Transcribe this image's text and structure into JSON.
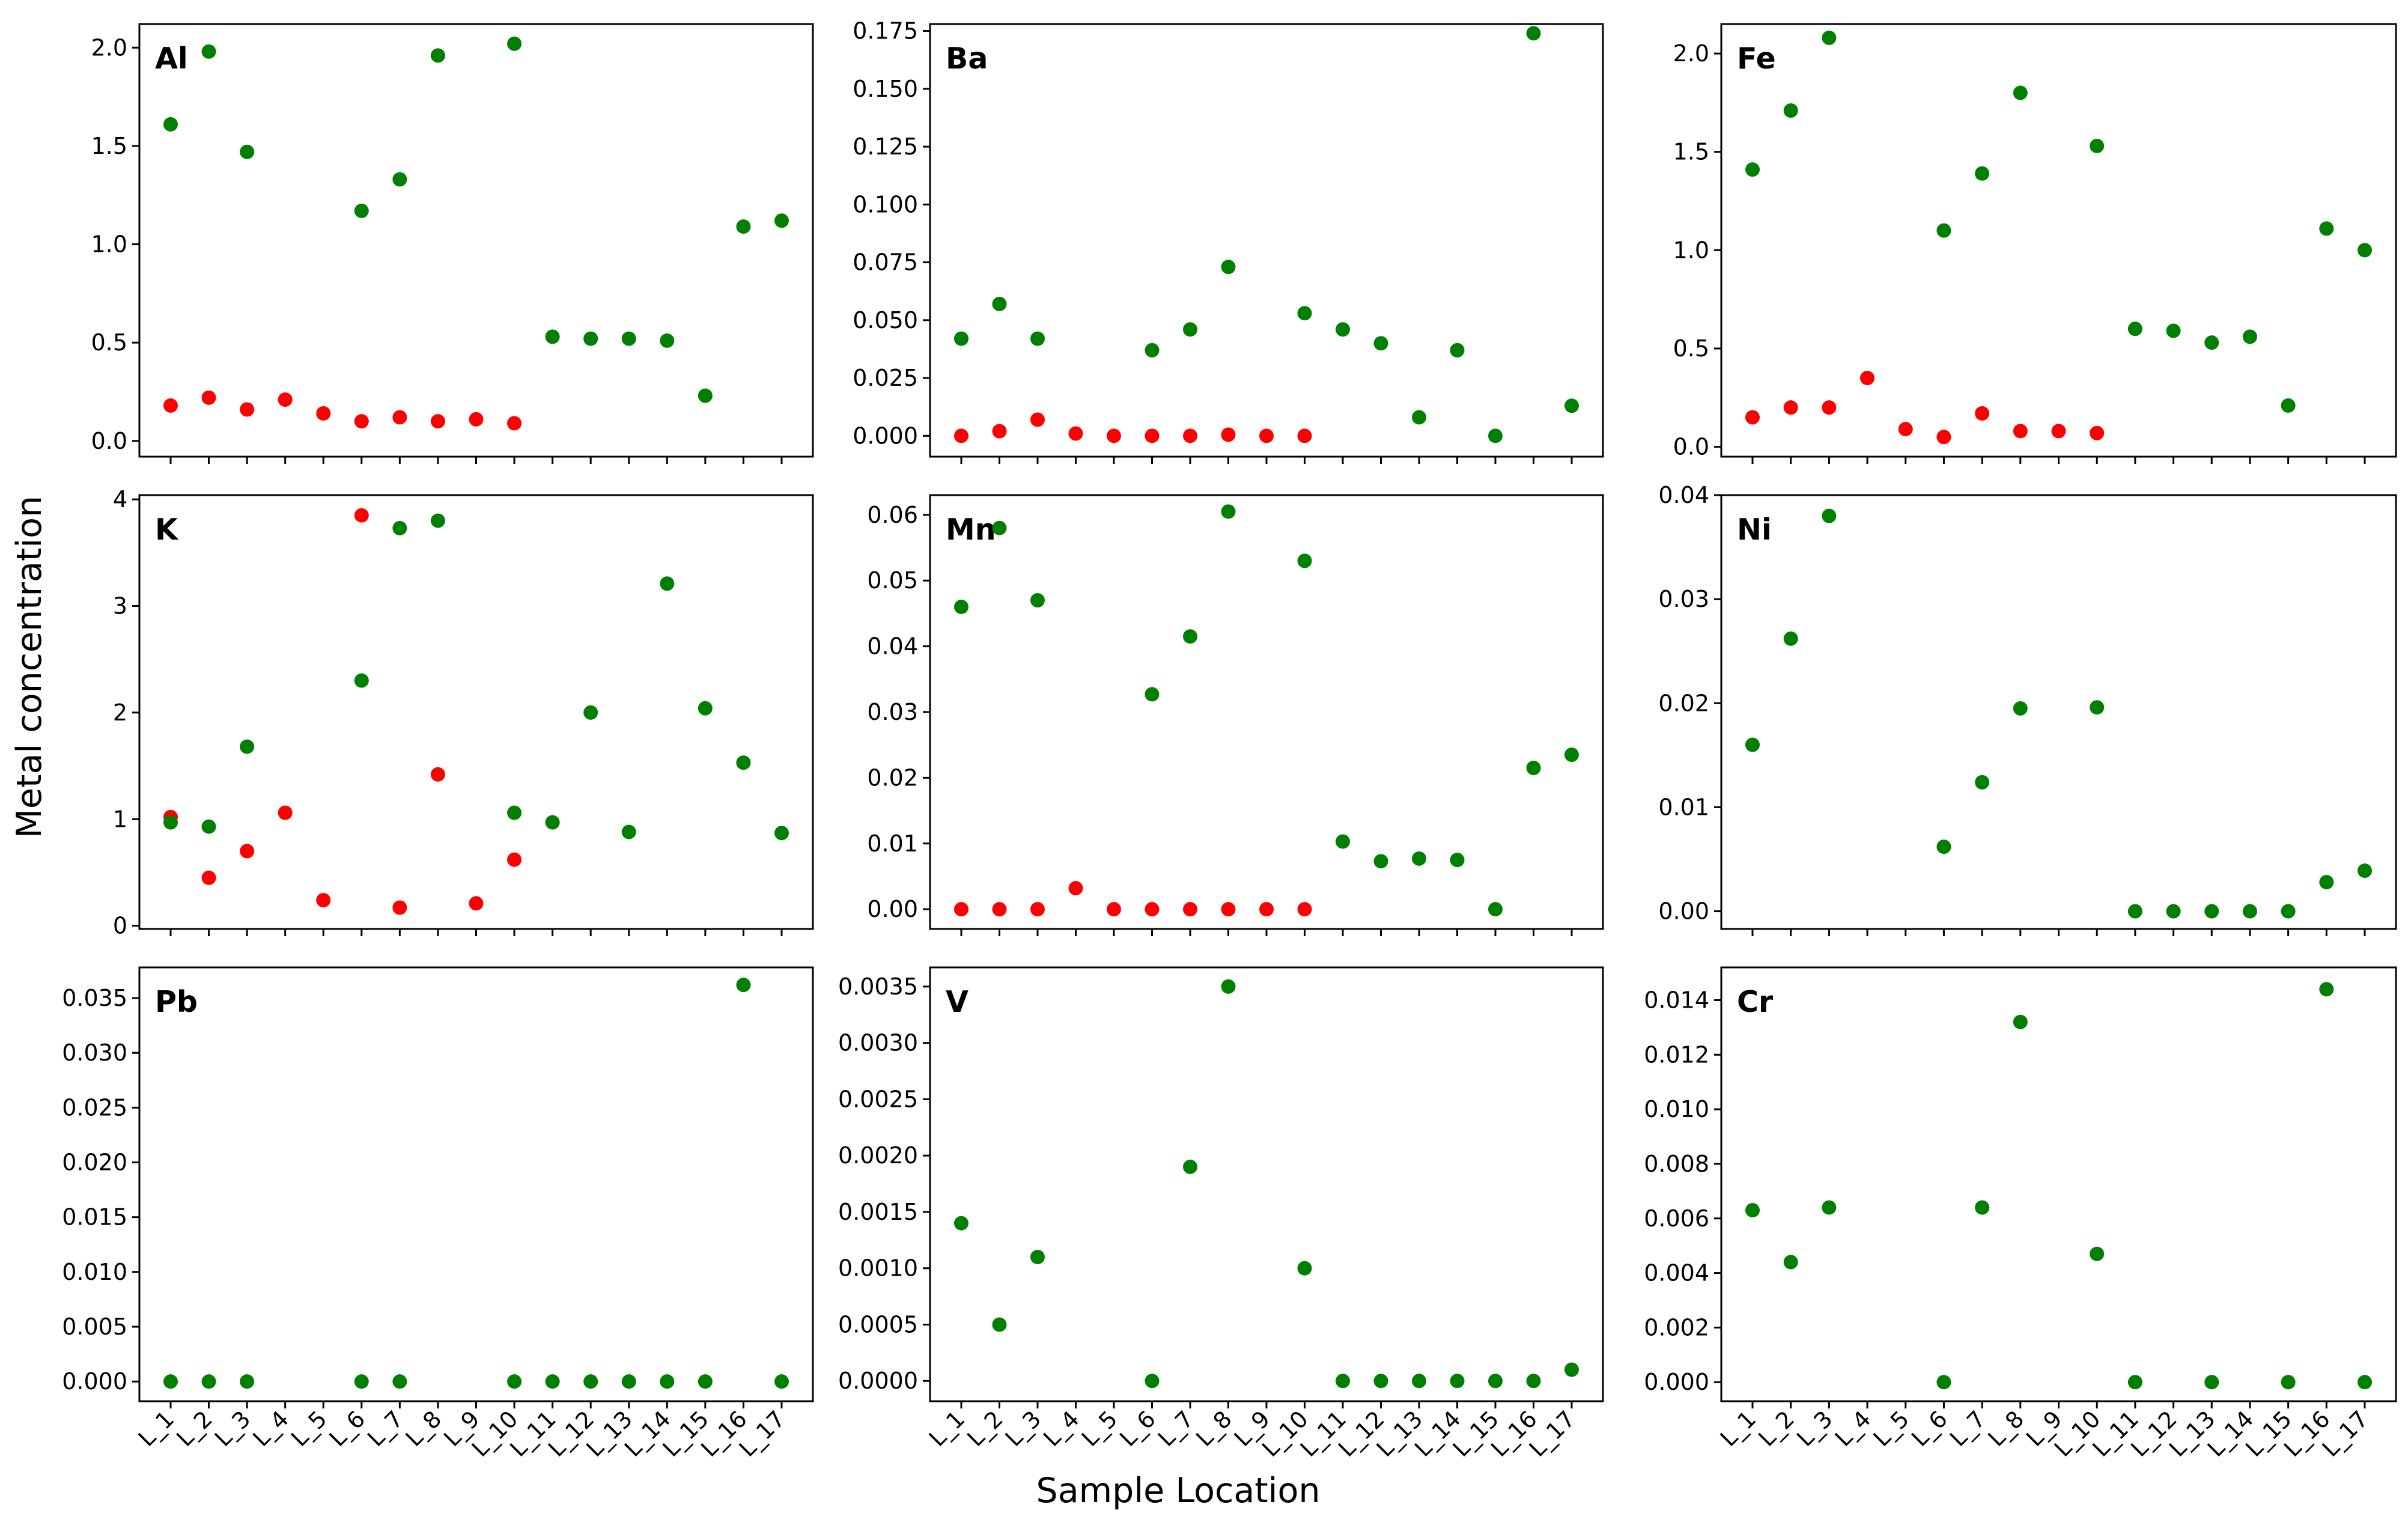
{
  "figure": {
    "ylabel": "Metal concentration",
    "xlabel": "Sample Location"
  },
  "colors": {
    "series_a": "#008000",
    "series_b": "#ff0000"
  },
  "chart_data": [
    {
      "type": "scatter",
      "title": "Al",
      "categories": [
        "L_1",
        "L_2",
        "L_3",
        "L_4",
        "L_5",
        "L_6",
        "L_7",
        "L_8",
        "L_9",
        "L_10",
        "L_11",
        "L_12",
        "L_13",
        "L_14",
        "L_15",
        "L_16",
        "L_17"
      ],
      "ylim": [
        -0.08,
        2.12
      ],
      "yticks": [
        "0.0",
        "0.5",
        "1.0",
        "1.5",
        "2.0"
      ],
      "series": [
        {
          "name": "green",
          "color": "#008000",
          "values": [
            1.61,
            1.98,
            1.47,
            null,
            null,
            1.17,
            1.33,
            1.96,
            null,
            2.02,
            0.53,
            0.52,
            0.52,
            0.51,
            0.23,
            1.09,
            1.12
          ]
        },
        {
          "name": "red",
          "color": "#ff0000",
          "values": [
            0.18,
            0.22,
            0.16,
            0.21,
            0.14,
            0.1,
            0.12,
            0.1,
            0.11,
            0.09,
            null,
            null,
            null,
            null,
            null,
            null,
            null
          ]
        }
      ]
    },
    {
      "type": "scatter",
      "title": "Ba",
      "categories": [
        "L_1",
        "L_2",
        "L_3",
        "L_4",
        "L_5",
        "L_6",
        "L_7",
        "L_8",
        "L_9",
        "L_10",
        "L_11",
        "L_12",
        "L_13",
        "L_14",
        "L_15",
        "L_16",
        "L_17"
      ],
      "ylim": [
        -0.009,
        0.178
      ],
      "yticks": [
        "0.000",
        "0.025",
        "0.050",
        "0.075",
        "0.100",
        "0.125",
        "0.150",
        "0.175"
      ],
      "series": [
        {
          "name": "green",
          "color": "#008000",
          "values": [
            0.042,
            0.057,
            0.042,
            null,
            null,
            0.037,
            0.046,
            0.073,
            null,
            0.053,
            0.046,
            0.04,
            0.008,
            0.037,
            0.0,
            0.174,
            0.013
          ]
        },
        {
          "name": "red",
          "color": "#ff0000",
          "values": [
            0.0,
            0.002,
            0.007,
            0.001,
            0.0,
            0.0,
            0.0,
            0.0005,
            0.0,
            0.0,
            null,
            null,
            null,
            null,
            null,
            null,
            null
          ]
        }
      ]
    },
    {
      "type": "scatter",
      "title": "Fe",
      "categories": [
        "L_1",
        "L_2",
        "L_3",
        "L_4",
        "L_5",
        "L_6",
        "L_7",
        "L_8",
        "L_9",
        "L_10",
        "L_11",
        "L_12",
        "L_13",
        "L_14",
        "L_15",
        "L_16",
        "L_17"
      ],
      "ylim": [
        -0.05,
        2.15
      ],
      "yticks": [
        "0.0",
        "0.5",
        "1.0",
        "1.5",
        "2.0"
      ],
      "series": [
        {
          "name": "green",
          "color": "#008000",
          "values": [
            1.41,
            1.71,
            2.08,
            null,
            null,
            1.1,
            1.39,
            1.8,
            null,
            1.53,
            0.6,
            0.59,
            0.53,
            0.56,
            0.21,
            1.11,
            1.0
          ]
        },
        {
          "name": "red",
          "color": "#ff0000",
          "values": [
            0.15,
            0.2,
            0.2,
            0.35,
            0.09,
            0.05,
            0.17,
            0.08,
            0.08,
            0.07,
            null,
            null,
            null,
            null,
            null,
            null,
            null
          ]
        }
      ]
    },
    {
      "type": "scatter",
      "title": "K",
      "categories": [
        "L_1",
        "L_2",
        "L_3",
        "L_4",
        "L_5",
        "L_6",
        "L_7",
        "L_8",
        "L_9",
        "L_10",
        "L_11",
        "L_12",
        "L_13",
        "L_14",
        "L_15",
        "L_16",
        "L_17"
      ],
      "ylim": [
        -0.03,
        4.04
      ],
      "yticks": [
        "0",
        "1",
        "2",
        "3",
        "4"
      ],
      "series": [
        {
          "name": "green",
          "color": "#008000",
          "values": [
            0.97,
            0.93,
            1.68,
            null,
            null,
            2.3,
            3.73,
            3.8,
            null,
            1.06,
            0.97,
            2.0,
            0.88,
            3.21,
            2.04,
            1.53,
            0.87
          ]
        },
        {
          "name": "red",
          "color": "#ff0000",
          "values": [
            1.02,
            0.45,
            0.7,
            1.06,
            0.24,
            3.85,
            0.17,
            1.42,
            0.21,
            0.62,
            null,
            null,
            null,
            null,
            null,
            null,
            null
          ]
        }
      ]
    },
    {
      "type": "scatter",
      "title": "Mn",
      "categories": [
        "L_1",
        "L_2",
        "L_3",
        "L_4",
        "L_5",
        "L_6",
        "L_7",
        "L_8",
        "L_9",
        "L_10",
        "L_11",
        "L_12",
        "L_13",
        "L_14",
        "L_15",
        "L_16",
        "L_17"
      ],
      "ylim": [
        -0.003,
        0.063
      ],
      "yticks": [
        "0.00",
        "0.01",
        "0.02",
        "0.03",
        "0.04",
        "0.05",
        "0.06"
      ],
      "series": [
        {
          "name": "green",
          "color": "#008000",
          "values": [
            0.046,
            0.058,
            0.047,
            null,
            null,
            0.0327,
            0.0415,
            0.0605,
            null,
            0.053,
            0.0103,
            0.0073,
            0.0077,
            0.0075,
            0.0,
            0.0215,
            0.0235
          ]
        },
        {
          "name": "red",
          "color": "#ff0000",
          "values": [
            0.0,
            0.0,
            0.0,
            0.0032,
            0.0,
            0.0,
            0.0,
            0.0,
            0.0,
            0.0,
            null,
            null,
            null,
            null,
            null,
            null,
            null
          ]
        }
      ]
    },
    {
      "type": "scatter",
      "title": "Ni",
      "categories": [
        "L_1",
        "L_2",
        "L_3",
        "L_4",
        "L_5",
        "L_6",
        "L_7",
        "L_8",
        "L_9",
        "L_10",
        "L_11",
        "L_12",
        "L_13",
        "L_14",
        "L_15",
        "L_16",
        "L_17"
      ],
      "ylim": [
        -0.0017,
        0.04
      ],
      "yticks": [
        "0.00",
        "0.01",
        "0.02",
        "0.03",
        "0.04"
      ],
      "series": [
        {
          "name": "green",
          "color": "#008000",
          "values": [
            0.016,
            0.0262,
            0.038,
            null,
            null,
            0.0062,
            0.0124,
            0.0195,
            null,
            0.0196,
            0.0,
            0.0,
            0.0,
            0.0,
            0.0,
            0.0028,
            0.0039
          ]
        }
      ]
    },
    {
      "type": "scatter",
      "title": "Pb",
      "categories": [
        "L_1",
        "L_2",
        "L_3",
        "L_4",
        "L_5",
        "L_6",
        "L_7",
        "L_8",
        "L_9",
        "L_10",
        "L_11",
        "L_12",
        "L_13",
        "L_14",
        "L_15",
        "L_16",
        "L_17"
      ],
      "ylim": [
        -0.0018,
        0.0378
      ],
      "yticks": [
        "0.000",
        "0.005",
        "0.010",
        "0.015",
        "0.020",
        "0.025",
        "0.030",
        "0.035"
      ],
      "series": [
        {
          "name": "green",
          "color": "#008000",
          "values": [
            0.0,
            0.0,
            0.0,
            null,
            null,
            0.0,
            0.0,
            null,
            null,
            0.0,
            0.0,
            0.0,
            0.0,
            0.0,
            0.0,
            0.0362,
            0.0
          ]
        }
      ]
    },
    {
      "type": "scatter",
      "title": "V",
      "categories": [
        "L_1",
        "L_2",
        "L_3",
        "L_4",
        "L_5",
        "L_6",
        "L_7",
        "L_8",
        "L_9",
        "L_10",
        "L_11",
        "L_12",
        "L_13",
        "L_14",
        "L_15",
        "L_16",
        "L_17"
      ],
      "ylim": [
        -0.00018,
        0.00367
      ],
      "yticks": [
        "0.0000",
        "0.0005",
        "0.0010",
        "0.0015",
        "0.0020",
        "0.0025",
        "0.0030",
        "0.0035"
      ],
      "series": [
        {
          "name": "green",
          "color": "#008000",
          "values": [
            0.0014,
            0.0005,
            0.0011,
            null,
            null,
            0.0,
            0.0019,
            0.0035,
            null,
            0.001,
            0.0,
            0.0,
            0.0,
            0.0,
            0.0,
            0.0,
            0.0001
          ]
        }
      ]
    },
    {
      "type": "scatter",
      "title": "Cr",
      "categories": [
        "L_1",
        "L_2",
        "L_3",
        "L_4",
        "L_5",
        "L_6",
        "L_7",
        "L_8",
        "L_9",
        "L_10",
        "L_11",
        "L_12",
        "L_13",
        "L_14",
        "L_15",
        "L_16",
        "L_17"
      ],
      "ylim": [
        -0.0007,
        0.0152
      ],
      "yticks": [
        "0.000",
        "0.002",
        "0.004",
        "0.006",
        "0.008",
        "0.010",
        "0.012",
        "0.014"
      ],
      "series": [
        {
          "name": "green",
          "color": "#008000",
          "values": [
            0.0063,
            0.0044,
            0.0064,
            null,
            null,
            0.0,
            0.0064,
            0.0132,
            null,
            0.0047,
            0.0,
            null,
            0.0,
            null,
            0.0,
            0.0144,
            0.0
          ]
        }
      ]
    }
  ]
}
